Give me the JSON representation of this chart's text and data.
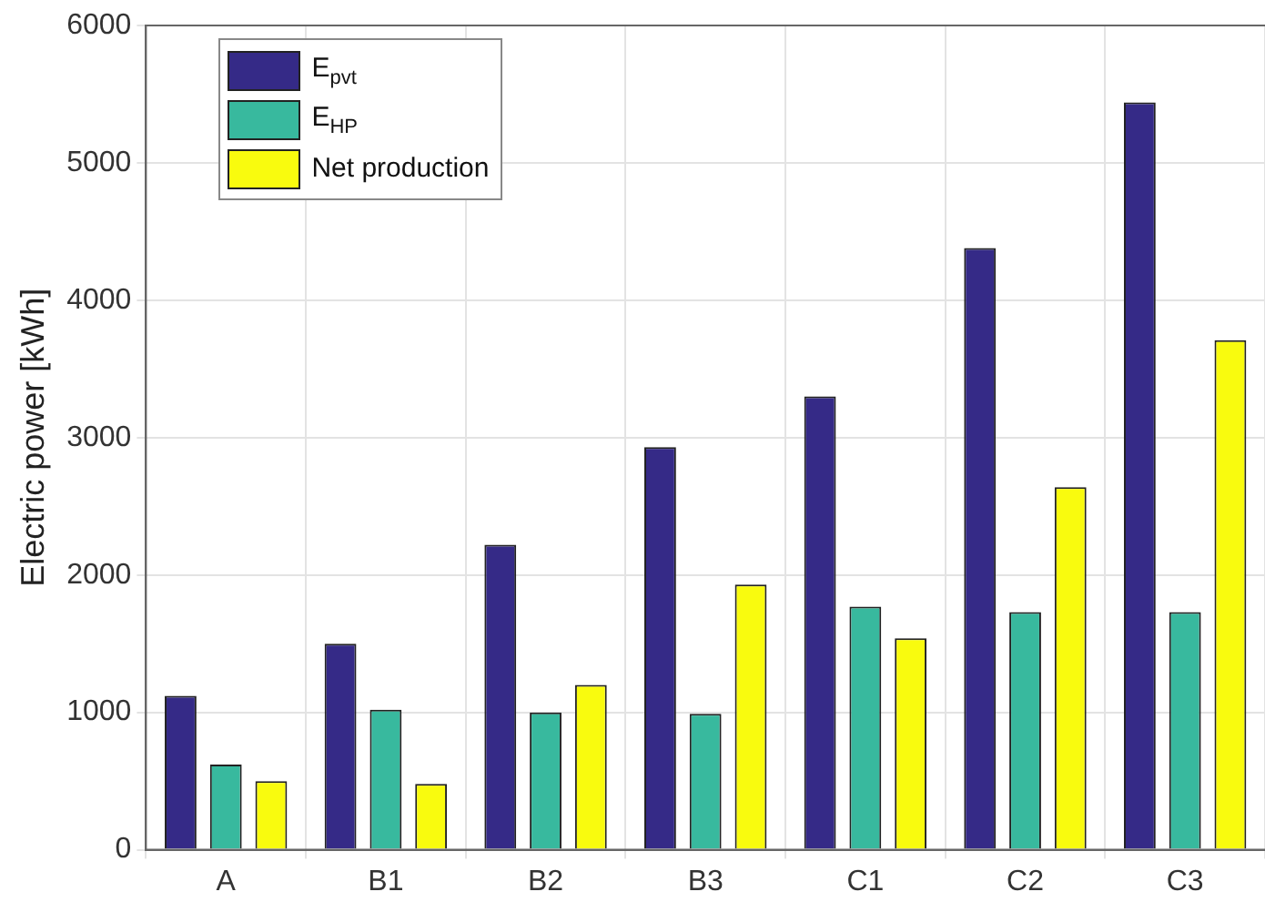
{
  "chart_data": {
    "type": "bar",
    "ylabel": "Electric power [kWh]",
    "categories": [
      "A",
      "B1",
      "B2",
      "B3",
      "C1",
      "C2",
      "C3"
    ],
    "series": [
      {
        "name": "E$_{pvt}$",
        "color": "#352a87",
        "values": [
          1120,
          1500,
          2220,
          2930,
          3300,
          4380,
          5440
        ]
      },
      {
        "name": "E$_{HP}$",
        "color": "#38b99e",
        "values": [
          620,
          1020,
          1000,
          990,
          1770,
          1730,
          1730
        ]
      },
      {
        "name": "Net production",
        "color": "#f9fb0e",
        "values": [
          500,
          480,
          1200,
          1930,
          1540,
          2640,
          3710
        ]
      }
    ],
    "ylim": [
      0,
      6000
    ],
    "yticks": [
      0,
      1000,
      2000,
      3000,
      4000,
      5000,
      6000
    ],
    "grid": true,
    "legend": "top left"
  }
}
